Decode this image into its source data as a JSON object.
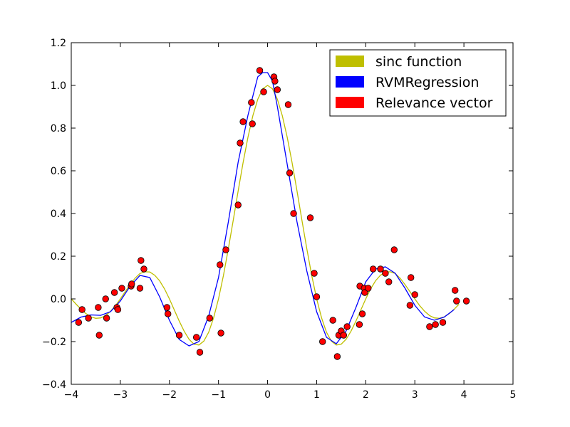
{
  "chart_data": {
    "type": "scatter",
    "title": "",
    "xlabel": "",
    "ylabel": "",
    "xlim": [
      -4,
      5
    ],
    "ylim": [
      -0.4,
      1.2
    ],
    "grid": false,
    "legend_placement": "top-right",
    "x_ticks": [
      "−4",
      "−3",
      "−2",
      "−1",
      "0",
      "1",
      "2",
      "3",
      "4",
      "5"
    ],
    "y_ticks": [
      "−0.4",
      "−0.2",
      "0.0",
      "0.2",
      "0.4",
      "0.6",
      "0.8",
      "1.0",
      "1.2"
    ],
    "series": [
      {
        "name": "sinc function",
        "kind": "line",
        "color": "#bfbf00",
        "x": [
          -4.0,
          -3.9,
          -3.8,
          -3.7,
          -3.6,
          -3.5,
          -3.4,
          -3.3,
          -3.2,
          -3.1,
          -3.0,
          -2.9,
          -2.8,
          -2.7,
          -2.6,
          -2.5,
          -2.4,
          -2.3,
          -2.2,
          -2.1,
          -2.0,
          -1.9,
          -1.8,
          -1.7,
          -1.6,
          -1.5,
          -1.4,
          -1.3,
          -1.2,
          -1.1,
          -1.0,
          -0.9,
          -0.8,
          -0.7,
          -0.6,
          -0.5,
          -0.4,
          -0.3,
          -0.2,
          -0.1,
          0.0,
          0.1,
          0.2,
          0.3,
          0.4,
          0.5,
          0.6,
          0.7,
          0.8,
          0.9,
          1.0,
          1.1,
          1.2,
          1.3,
          1.4,
          1.5,
          1.6,
          1.7,
          1.8,
          1.9,
          2.0,
          2.1,
          2.2,
          2.3,
          2.4,
          2.5,
          2.6,
          2.7,
          2.8,
          2.9,
          3.0,
          3.1,
          3.2,
          3.3,
          3.4,
          3.5,
          3.6,
          3.7,
          3.8,
          3.9
        ],
        "y": [
          0.0,
          -0.025,
          -0.049,
          -0.069,
          -0.084,
          -0.091,
          -0.089,
          -0.078,
          -0.058,
          -0.032,
          0.0,
          0.034,
          0.067,
          0.097,
          0.119,
          0.127,
          0.126,
          0.111,
          0.085,
          0.047,
          0.0,
          -0.052,
          -0.104,
          -0.151,
          -0.189,
          -0.212,
          -0.216,
          -0.198,
          -0.156,
          -0.089,
          0.0,
          0.109,
          0.234,
          0.368,
          0.505,
          0.637,
          0.757,
          0.858,
          0.935,
          0.984,
          1.0,
          0.984,
          0.935,
          0.858,
          0.757,
          0.637,
          0.505,
          0.368,
          0.234,
          0.109,
          0.0,
          -0.089,
          -0.156,
          -0.198,
          -0.216,
          -0.212,
          -0.189,
          -0.151,
          -0.104,
          -0.052,
          0.0,
          0.047,
          0.085,
          0.111,
          0.126,
          0.127,
          0.119,
          0.097,
          0.067,
          0.034,
          0.0,
          -0.032,
          -0.058,
          -0.078,
          -0.089,
          -0.091,
          -0.084,
          -0.069,
          -0.049,
          -0.025
        ]
      },
      {
        "name": "RVMRegression",
        "kind": "line",
        "color": "#0000ff",
        "x": [
          -4.0,
          -3.8,
          -3.6,
          -3.4,
          -3.2,
          -3.0,
          -2.8,
          -2.6,
          -2.4,
          -2.2,
          -2.0,
          -1.8,
          -1.6,
          -1.4,
          -1.2,
          -1.0,
          -0.8,
          -0.6,
          -0.4,
          -0.2,
          -0.1,
          0.0,
          0.1,
          0.2,
          0.4,
          0.6,
          0.8,
          1.0,
          1.2,
          1.4,
          1.6,
          1.8,
          2.0,
          2.2,
          2.4,
          2.6,
          2.8,
          3.0,
          3.2,
          3.4,
          3.6,
          3.8
        ],
        "y": [
          -0.11,
          -0.085,
          -0.075,
          -0.077,
          -0.06,
          -0.01,
          0.06,
          0.11,
          0.1,
          0.01,
          -0.1,
          -0.19,
          -0.22,
          -0.2,
          -0.08,
          0.1,
          0.36,
          0.64,
          0.86,
          1.04,
          1.06,
          1.06,
          1.02,
          0.9,
          0.63,
          0.36,
          0.13,
          -0.06,
          -0.18,
          -0.21,
          -0.15,
          -0.04,
          0.08,
          0.14,
          0.15,
          0.12,
          0.05,
          -0.03,
          -0.085,
          -0.1,
          -0.085,
          -0.05
        ]
      },
      {
        "name": "Relevance vector",
        "kind": "scatter",
        "color": "#ff0000",
        "points": [
          [
            -3.85,
            -0.11
          ],
          [
            -3.78,
            -0.05
          ],
          [
            -3.65,
            -0.09
          ],
          [
            -3.45,
            -0.04
          ],
          [
            -3.43,
            -0.17
          ],
          [
            -3.3,
            0.0
          ],
          [
            -3.28,
            -0.09
          ],
          [
            -3.12,
            0.03
          ],
          [
            -3.07,
            -0.04
          ],
          [
            -3.05,
            -0.05
          ],
          [
            -2.97,
            0.05
          ],
          [
            -2.78,
            0.06
          ],
          [
            -2.77,
            0.07
          ],
          [
            -2.6,
            0.05
          ],
          [
            -2.58,
            0.18
          ],
          [
            -2.52,
            0.14
          ],
          [
            -2.05,
            -0.04
          ],
          [
            -2.03,
            -0.07
          ],
          [
            -1.8,
            -0.17
          ],
          [
            -1.45,
            -0.18
          ],
          [
            -1.38,
            -0.25
          ],
          [
            -1.18,
            -0.09
          ],
          [
            -0.97,
            0.16
          ],
          [
            -0.95,
            -0.16
          ],
          [
            -0.85,
            0.23
          ],
          [
            -0.6,
            0.44
          ],
          [
            -0.56,
            0.73
          ],
          [
            -0.5,
            0.83
          ],
          [
            -0.33,
            0.92
          ],
          [
            -0.31,
            0.82
          ],
          [
            -0.16,
            1.07
          ],
          [
            -0.08,
            0.97
          ],
          [
            0.13,
            1.04
          ],
          [
            0.15,
            1.02
          ],
          [
            0.2,
            0.98
          ],
          [
            0.42,
            0.91
          ],
          [
            0.45,
            0.59
          ],
          [
            0.53,
            0.4
          ],
          [
            0.87,
            0.38
          ],
          [
            0.95,
            0.12
          ],
          [
            1.0,
            0.01
          ],
          [
            1.12,
            -0.2
          ],
          [
            1.33,
            -0.1
          ],
          [
            1.42,
            -0.27
          ],
          [
            1.45,
            -0.17
          ],
          [
            1.5,
            -0.15
          ],
          [
            1.55,
            -0.17
          ],
          [
            1.62,
            -0.13
          ],
          [
            1.87,
            -0.12
          ],
          [
            1.88,
            0.06
          ],
          [
            1.93,
            -0.07
          ],
          [
            1.97,
            0.05
          ],
          [
            1.98,
            0.03
          ],
          [
            2.05,
            0.05
          ],
          [
            2.15,
            0.14
          ],
          [
            2.3,
            0.14
          ],
          [
            2.4,
            0.12
          ],
          [
            2.47,
            0.08
          ],
          [
            2.58,
            0.23
          ],
          [
            2.9,
            -0.03
          ],
          [
            2.92,
            0.1
          ],
          [
            3.0,
            0.02
          ],
          [
            3.3,
            -0.13
          ],
          [
            3.42,
            -0.12
          ],
          [
            3.57,
            -0.11
          ],
          [
            3.82,
            0.04
          ],
          [
            3.85,
            -0.01
          ],
          [
            4.05,
            -0.01
          ]
        ]
      }
    ]
  }
}
